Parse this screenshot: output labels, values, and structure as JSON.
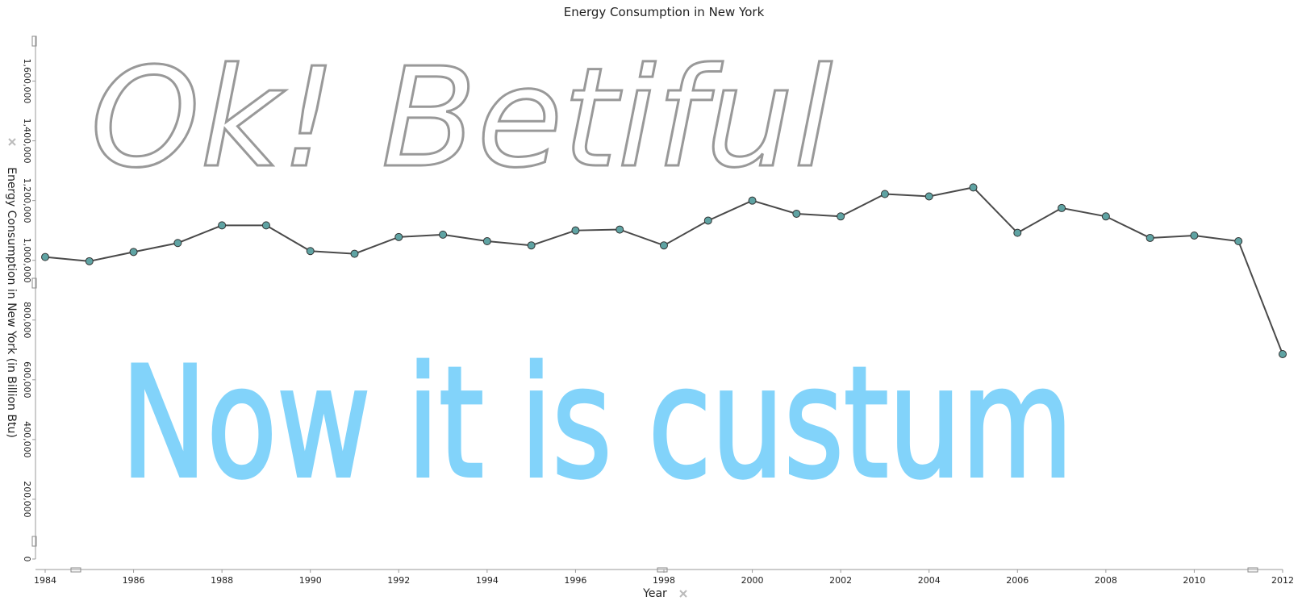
{
  "chart_data": {
    "type": "line",
    "title": "Energy Consumption in New York",
    "x_label": "Year",
    "y_label": "Energy Consumption in New York (in Billion Btu)",
    "x": [
      1984,
      1985,
      1986,
      1987,
      1988,
      1989,
      1990,
      1991,
      1992,
      1993,
      1994,
      1995,
      1996,
      1997,
      1998,
      1999,
      2000,
      2001,
      2002,
      2003,
      2004,
      2005,
      2006,
      2007,
      2008,
      2009,
      2010,
      2011,
      2012
    ],
    "series": [
      {
        "color": "#4a4a4a",
        "marker_color": "#5fa3a3",
        "values": [
          1011000,
          997000,
          1028000,
          1058000,
          1117000,
          1117000,
          1031000,
          1022000,
          1078000,
          1086000,
          1064000,
          1050000,
          1100000,
          1103000,
          1050000,
          1133000,
          1200000,
          1156000,
          1147000,
          1222000,
          1214000,
          1244000,
          1092000,
          1175000,
          1147000,
          1075000,
          1083000,
          1064000,
          686000
        ]
      }
    ],
    "xlim": [
      1984,
      2012
    ],
    "xticks": [
      1984,
      1986,
      1988,
      1990,
      1992,
      1994,
      1996,
      1998,
      2000,
      2002,
      2004,
      2006,
      2008,
      2010,
      2012
    ],
    "ylim": [
      0,
      1750000
    ],
    "yticks": [
      0,
      {
        "value": 200000,
        "label": "200,000"
      },
      {
        "value": 400000,
        "label": "400,000"
      },
      {
        "value": 600000,
        "label": "600,000"
      },
      {
        "value": 800000,
        "label": "800,000"
      },
      {
        "value": 1000000,
        "label": "1,000,000"
      },
      {
        "value": 1200000,
        "label": "1,200,000"
      },
      {
        "value": 1400000,
        "label": "1,400,000"
      },
      {
        "value": 1600000,
        "label": "1,600,000"
      }
    ],
    "annotations": [
      {
        "text": "Ok! Betiful",
        "color": "#999999"
      },
      {
        "text": "Now it is custum",
        "color": "#82d3fa"
      }
    ]
  }
}
